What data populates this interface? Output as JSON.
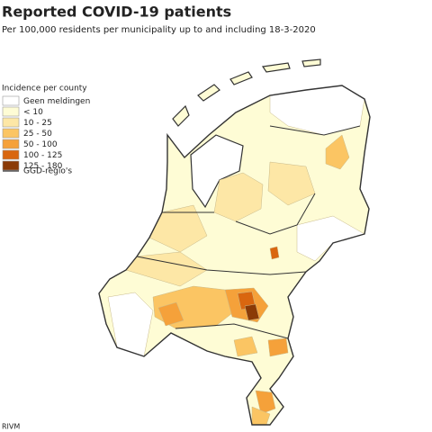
{
  "header": {
    "title": "Reported COVID-19 patients",
    "subtitle": "Per 100,000 residents per municipality up to and including 18-3-2020"
  },
  "legend": {
    "title": "Incidence per county",
    "items": [
      {
        "label": "Geen meldingen",
        "color": "#ffffff"
      },
      {
        "label": "< 10",
        "color": "#fefcd5"
      },
      {
        "label": "10 - 25",
        "color": "#fde7a6"
      },
      {
        "label": "25 - 50",
        "color": "#fbc563"
      },
      {
        "label": "50 - 100",
        "color": "#f5a13a"
      },
      {
        "label": "100 - 125",
        "color": "#d9660f"
      },
      {
        "label": "125 - 180",
        "color": "#8b3a06"
      }
    ],
    "line_label": "GGD-regio's"
  },
  "source": "RIVM"
}
